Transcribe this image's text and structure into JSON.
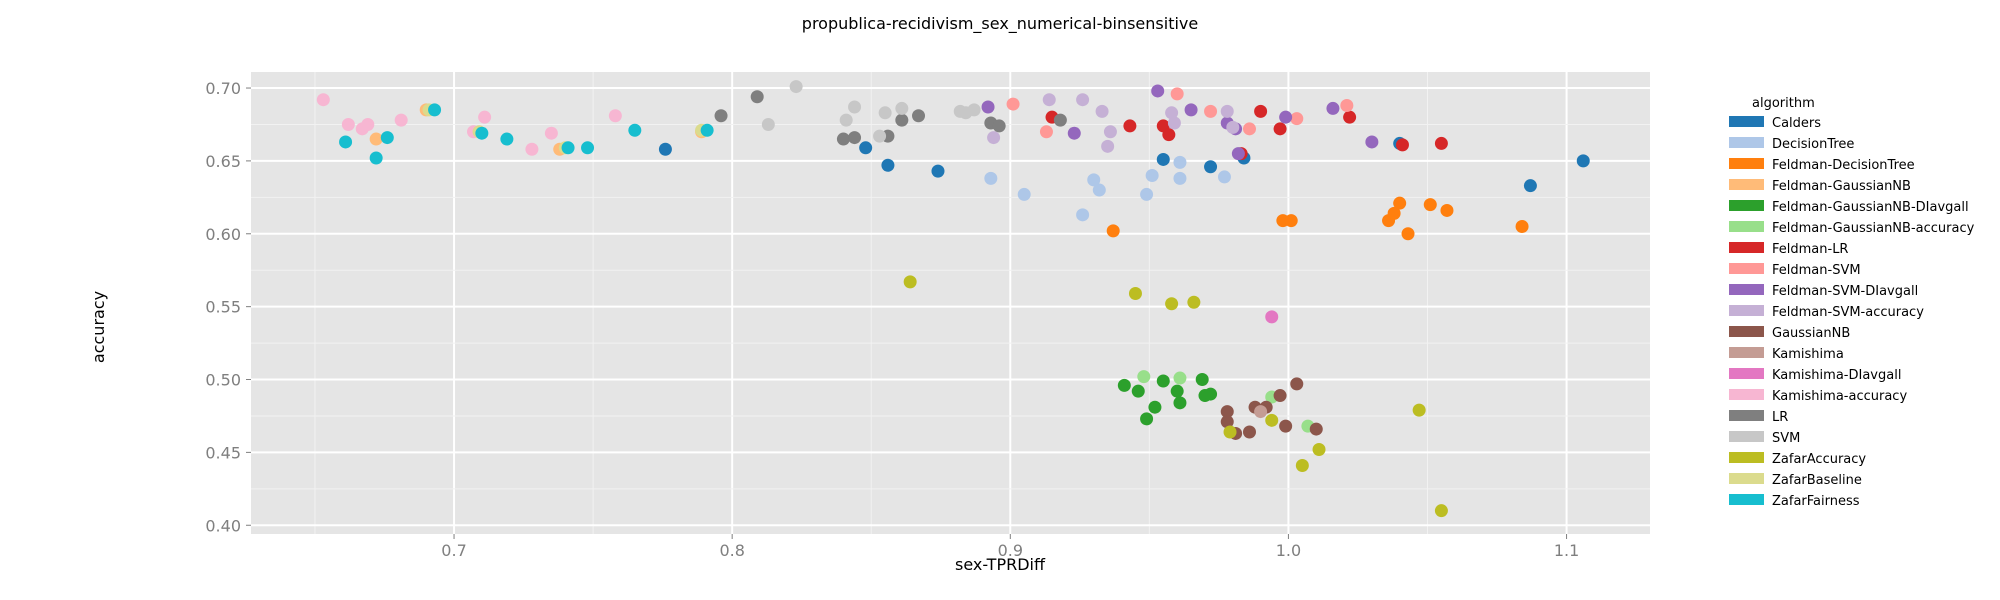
{
  "chart_data": {
    "type": "scatter",
    "title": "propublica-recidivism_sex_numerical-binsensitive",
    "xlabel": "sex-TPRDiff",
    "ylabel": "accuracy",
    "xlim": [
      0.627,
      1.13
    ],
    "ylim": [
      0.394,
      0.711
    ],
    "xticks": [
      "0.7",
      "0.8",
      "0.9",
      "1.0",
      "1.1"
    ],
    "yticks": [
      "0.40",
      "0.45",
      "0.50",
      "0.55",
      "0.60",
      "0.65",
      "0.70"
    ],
    "grid": true,
    "legend_title": "algorithm",
    "legend_position": "right",
    "series": [
      {
        "name": "Calders",
        "color": "#1f77b4",
        "points": [
          [
            0.776,
            0.658
          ],
          [
            0.848,
            0.659
          ],
          [
            0.856,
            0.647
          ],
          [
            0.874,
            0.643
          ],
          [
            0.955,
            0.651
          ],
          [
            0.972,
            0.646
          ],
          [
            0.984,
            0.652
          ],
          [
            1.04,
            0.662
          ],
          [
            1.087,
            0.633
          ],
          [
            1.106,
            0.65
          ]
        ]
      },
      {
        "name": "DecisionTree",
        "color": "#aec7e8",
        "points": [
          [
            0.893,
            0.638
          ],
          [
            0.905,
            0.627
          ],
          [
            0.926,
            0.613
          ],
          [
            0.93,
            0.637
          ],
          [
            0.932,
            0.63
          ],
          [
            0.949,
            0.627
          ],
          [
            0.951,
            0.64
          ],
          [
            0.961,
            0.638
          ],
          [
            0.961,
            0.649
          ],
          [
            0.977,
            0.639
          ]
        ]
      },
      {
        "name": "Feldman-DecisionTree",
        "color": "#ff7f0e",
        "points": [
          [
            0.937,
            0.602
          ],
          [
            0.998,
            0.609
          ],
          [
            1.001,
            0.609
          ],
          [
            1.036,
            0.609
          ],
          [
            1.038,
            0.614
          ],
          [
            1.04,
            0.621
          ],
          [
            1.043,
            0.6
          ],
          [
            1.051,
            0.62
          ],
          [
            1.057,
            0.616
          ],
          [
            1.084,
            0.605
          ]
        ]
      },
      {
        "name": "Feldman-GaussianNB",
        "color": "#ffbb78",
        "points": [
          [
            0.672,
            0.665
          ],
          [
            0.69,
            0.685
          ],
          [
            0.738,
            0.658
          ],
          [
            0.789,
            0.67
          ]
        ]
      },
      {
        "name": "Feldman-GaussianNB-DIavgall",
        "color": "#2ca02c",
        "points": [
          [
            0.941,
            0.496
          ],
          [
            0.946,
            0.492
          ],
          [
            0.949,
            0.473
          ],
          [
            0.952,
            0.481
          ],
          [
            0.955,
            0.499
          ],
          [
            0.96,
            0.492
          ],
          [
            0.961,
            0.484
          ],
          [
            0.969,
            0.5
          ],
          [
            0.97,
            0.489
          ],
          [
            0.972,
            0.49
          ]
        ]
      },
      {
        "name": "Feldman-GaussianNB-accuracy",
        "color": "#98df8a",
        "points": [
          [
            0.948,
            0.502
          ],
          [
            0.961,
            0.501
          ],
          [
            0.994,
            0.488
          ],
          [
            1.007,
            0.468
          ]
        ]
      },
      {
        "name": "Feldman-LR",
        "color": "#d62728",
        "points": [
          [
            0.915,
            0.68
          ],
          [
            0.943,
            0.674
          ],
          [
            0.955,
            0.674
          ],
          [
            0.957,
            0.668
          ],
          [
            0.983,
            0.655
          ],
          [
            0.99,
            0.684
          ],
          [
            0.997,
            0.672
          ],
          [
            1.022,
            0.68
          ],
          [
            1.041,
            0.661
          ],
          [
            1.055,
            0.662
          ]
        ]
      },
      {
        "name": "Feldman-SVM",
        "color": "#ff9896",
        "points": [
          [
            0.901,
            0.689
          ],
          [
            0.913,
            0.67
          ],
          [
            0.96,
            0.696
          ],
          [
            0.972,
            0.684
          ],
          [
            0.986,
            0.672
          ],
          [
            1.003,
            0.679
          ],
          [
            1.021,
            0.688
          ]
        ]
      },
      {
        "name": "Feldman-SVM-DIavgall",
        "color": "#9467bd",
        "points": [
          [
            0.892,
            0.687
          ],
          [
            0.923,
            0.669
          ],
          [
            0.953,
            0.698
          ],
          [
            0.965,
            0.685
          ],
          [
            0.978,
            0.676
          ],
          [
            0.981,
            0.672
          ],
          [
            0.982,
            0.655
          ],
          [
            0.999,
            0.68
          ],
          [
            1.016,
            0.686
          ],
          [
            1.03,
            0.663
          ]
        ]
      },
      {
        "name": "Feldman-SVM-accuracy",
        "color": "#c5b0d5",
        "points": [
          [
            0.894,
            0.666
          ],
          [
            0.914,
            0.692
          ],
          [
            0.926,
            0.692
          ],
          [
            0.933,
            0.684
          ],
          [
            0.935,
            0.66
          ],
          [
            0.936,
            0.67
          ],
          [
            0.958,
            0.683
          ],
          [
            0.959,
            0.676
          ],
          [
            0.978,
            0.684
          ],
          [
            0.98,
            0.673
          ]
        ]
      },
      {
        "name": "GaussianNB",
        "color": "#8c564b",
        "points": [
          [
            0.978,
            0.478
          ],
          [
            0.978,
            0.471
          ],
          [
            0.981,
            0.463
          ],
          [
            0.986,
            0.464
          ],
          [
            0.988,
            0.481
          ],
          [
            0.992,
            0.481
          ],
          [
            0.997,
            0.489
          ],
          [
            0.999,
            0.468
          ],
          [
            1.003,
            0.497
          ],
          [
            1.01,
            0.466
          ]
        ]
      },
      {
        "name": "Kamishima",
        "color": "#c49c94",
        "points": [
          [
            0.99,
            0.478
          ]
        ]
      },
      {
        "name": "Kamishima-DIavgall",
        "color": "#e377c2",
        "points": [
          [
            0.994,
            0.543
          ]
        ]
      },
      {
        "name": "Kamishima-accuracy",
        "color": "#f7b6d2",
        "points": [
          [
            0.653,
            0.692
          ],
          [
            0.662,
            0.675
          ],
          [
            0.667,
            0.672
          ],
          [
            0.669,
            0.675
          ],
          [
            0.681,
            0.678
          ],
          [
            0.707,
            0.67
          ],
          [
            0.711,
            0.68
          ],
          [
            0.728,
            0.658
          ],
          [
            0.735,
            0.669
          ],
          [
            0.758,
            0.681
          ]
        ]
      },
      {
        "name": "LR",
        "color": "#7f7f7f",
        "points": [
          [
            0.796,
            0.681
          ],
          [
            0.809,
            0.694
          ],
          [
            0.84,
            0.665
          ],
          [
            0.844,
            0.666
          ],
          [
            0.856,
            0.667
          ],
          [
            0.861,
            0.678
          ],
          [
            0.867,
            0.681
          ],
          [
            0.893,
            0.676
          ],
          [
            0.896,
            0.674
          ],
          [
            0.918,
            0.678
          ]
        ]
      },
      {
        "name": "SVM",
        "color": "#c7c7c7",
        "points": [
          [
            0.813,
            0.675
          ],
          [
            0.823,
            0.701
          ],
          [
            0.841,
            0.678
          ],
          [
            0.844,
            0.687
          ],
          [
            0.853,
            0.667
          ],
          [
            0.855,
            0.683
          ],
          [
            0.861,
            0.686
          ],
          [
            0.882,
            0.684
          ],
          [
            0.884,
            0.683
          ],
          [
            0.887,
            0.685
          ]
        ]
      },
      {
        "name": "ZafarAccuracy",
        "color": "#bcbd22",
        "points": [
          [
            0.864,
            0.567
          ],
          [
            0.945,
            0.559
          ],
          [
            0.958,
            0.552
          ],
          [
            0.966,
            0.553
          ],
          [
            0.979,
            0.464
          ],
          [
            0.994,
            0.472
          ],
          [
            1.005,
            0.441
          ],
          [
            1.011,
            0.452
          ],
          [
            1.047,
            0.479
          ],
          [
            1.055,
            0.41
          ]
        ]
      },
      {
        "name": "ZafarBaseline",
        "color": "#dbdb8d",
        "points": [
          [
            0.691,
            0.685
          ],
          [
            0.709,
            0.67
          ],
          [
            0.74,
            0.659
          ],
          [
            0.789,
            0.671
          ]
        ]
      },
      {
        "name": "ZafarFairness",
        "color": "#17becf",
        "points": [
          [
            0.661,
            0.663
          ],
          [
            0.672,
            0.652
          ],
          [
            0.676,
            0.666
          ],
          [
            0.693,
            0.685
          ],
          [
            0.71,
            0.669
          ],
          [
            0.719,
            0.665
          ],
          [
            0.741,
            0.659
          ],
          [
            0.748,
            0.659
          ],
          [
            0.765,
            0.671
          ],
          [
            0.791,
            0.671
          ]
        ]
      }
    ]
  }
}
